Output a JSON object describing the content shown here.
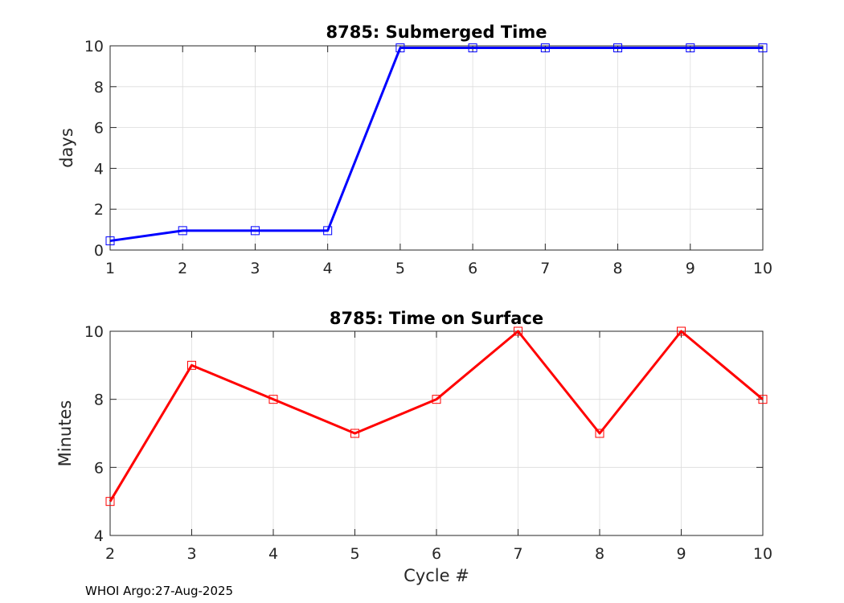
{
  "chart_data": [
    {
      "type": "line",
      "title": "8785: Submerged Time",
      "xlabel": "",
      "ylabel": "days",
      "xlim": [
        1,
        10
      ],
      "ylim": [
        0,
        10
      ],
      "xticks": [
        1,
        2,
        3,
        4,
        5,
        6,
        7,
        8,
        9,
        10
      ],
      "yticks": [
        0,
        2,
        4,
        6,
        8,
        10
      ],
      "grid": true,
      "series": [
        {
          "name": "Submerged Time",
          "color": "#0000ff",
          "marker": "square",
          "x": [
            1,
            2,
            3,
            4,
            5,
            6,
            7,
            8,
            9,
            10
          ],
          "values": [
            0.45,
            0.95,
            0.95,
            0.95,
            9.9,
            9.9,
            9.9,
            9.9,
            9.9,
            9.9
          ]
        }
      ]
    },
    {
      "type": "line",
      "title": "8785: Time on Surface",
      "xlabel": "Cycle #",
      "ylabel": "Minutes",
      "xlim": [
        2,
        10
      ],
      "ylim": [
        4,
        10
      ],
      "xticks": [
        2,
        3,
        4,
        5,
        6,
        7,
        8,
        9,
        10
      ],
      "yticks": [
        4,
        6,
        8,
        10
      ],
      "grid": true,
      "series": [
        {
          "name": "Time on Surface",
          "color": "#ff0000",
          "marker": "square",
          "x": [
            2,
            3,
            4,
            5,
            6,
            7,
            8,
            9,
            10
          ],
          "values": [
            5,
            9,
            8,
            7,
            8,
            10,
            7,
            10,
            8
          ]
        }
      ]
    }
  ],
  "footer": "WHOI Argo:27-Aug-2025"
}
